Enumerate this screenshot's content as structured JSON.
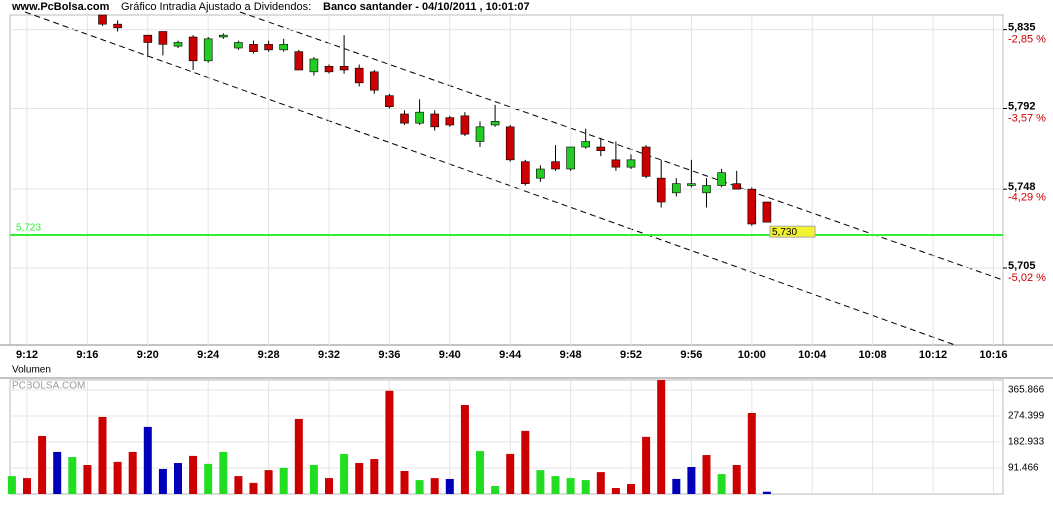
{
  "chart_data": [
    {
      "type": "candlestick",
      "source": "www.PcBolsa.com",
      "subtitle": "Gráfico Intradia Ajustado a Dividendos:",
      "title": "Banco santander - 04/10/2011 , 10:01:07",
      "categories": [
        null,
        "9:12",
        null,
        null,
        null,
        "9:16",
        null,
        null,
        null,
        "9:20",
        null,
        null,
        null,
        "9:24",
        null,
        null,
        null,
        "9:28",
        null,
        null,
        null,
        "9:32",
        null,
        null,
        null,
        "9:36",
        null,
        null,
        null,
        "9:40",
        null,
        null,
        null,
        "9:44",
        null,
        null,
        null,
        "9:48",
        null,
        null,
        null,
        "9:52",
        null,
        null,
        null,
        "9:56",
        null,
        null,
        null,
        "10:00",
        null,
        null,
        null,
        "10:04",
        null,
        null,
        null,
        "10:08",
        null,
        null,
        null,
        "10:12",
        null,
        null,
        null,
        "10:16"
      ],
      "open": [
        null,
        null,
        null,
        null,
        null,
        null,
        5.843,
        5.838,
        null,
        5.832,
        5.834,
        5.826,
        5.831,
        5.818,
        5.831,
        5.825,
        5.827,
        5.827,
        5.824,
        5.823,
        5.812,
        5.815,
        5.815,
        5.814,
        5.812,
        5.799,
        5.789,
        5.784,
        5.789,
        5.787,
        5.788,
        5.774,
        5.783,
        5.782,
        5.763,
        5.754,
        5.763,
        5.759,
        5.771,
        5.771,
        5.764,
        5.76,
        5.771,
        5.754,
        5.746,
        5.75,
        5.746,
        5.75,
        5.751,
        5.748,
        5.741,
        null,
        null,
        null,
        null,
        null,
        null,
        null,
        null,
        null,
        null,
        null,
        null,
        null,
        null,
        null
      ],
      "high": [
        null,
        null,
        null,
        null,
        null,
        null,
        5.843,
        5.84,
        null,
        5.832,
        5.834,
        5.829,
        5.832,
        5.831,
        5.833,
        5.829,
        5.829,
        5.829,
        5.83,
        5.824,
        5.82,
        5.816,
        5.832,
        5.816,
        5.813,
        5.8,
        5.791,
        5.797,
        5.791,
        5.788,
        5.79,
        5.785,
        5.794,
        5.783,
        5.764,
        5.761,
        5.772,
        5.771,
        5.781,
        5.776,
        5.774,
        5.767,
        5.772,
        5.764,
        5.754,
        5.764,
        5.754,
        5.759,
        5.758,
        5.749,
        5.741,
        null,
        null,
        null,
        null,
        null,
        null,
        null,
        null,
        null,
        null,
        null,
        null,
        null,
        null,
        null
      ],
      "low": [
        null,
        null,
        null,
        null,
        null,
        null,
        5.837,
        5.834,
        null,
        5.82,
        5.821,
        5.825,
        5.813,
        5.817,
        5.83,
        5.824,
        5.822,
        5.823,
        5.823,
        5.813,
        5.81,
        5.811,
        5.811,
        5.804,
        5.8,
        5.792,
        5.783,
        5.783,
        5.78,
        5.782,
        5.777,
        5.771,
        5.782,
        5.763,
        5.75,
        5.752,
        5.758,
        5.758,
        5.77,
        5.766,
        5.758,
        5.759,
        5.754,
        5.738,
        5.744,
        5.749,
        5.738,
        5.749,
        5.748,
        5.728,
        5.73,
        null,
        null,
        null,
        null,
        null,
        null,
        null,
        null,
        null,
        null,
        null,
        null,
        null,
        null,
        null
      ],
      "close": [
        null,
        null,
        null,
        null,
        null,
        null,
        5.838,
        5.836,
        null,
        5.828,
        5.827,
        5.828,
        5.818,
        5.83,
        5.832,
        5.828,
        5.823,
        5.824,
        5.827,
        5.813,
        5.819,
        5.812,
        5.813,
        5.806,
        5.802,
        5.793,
        5.784,
        5.79,
        5.782,
        5.783,
        5.778,
        5.782,
        5.785,
        5.764,
        5.751,
        5.759,
        5.759,
        5.771,
        5.774,
        5.769,
        5.76,
        5.764,
        5.755,
        5.741,
        5.751,
        5.751,
        5.75,
        5.757,
        5.748,
        5.729,
        5.73,
        null,
        null,
        null,
        null,
        null,
        null,
        null,
        null,
        null,
        null,
        null,
        null,
        null,
        null,
        null
      ],
      "up_color": "#22cc22",
      "down_color": "#cc0000",
      "ylim": [
        5.663,
        5.843
      ],
      "yticks": [
        {
          "value": 5.835,
          "label": "5,835"
        },
        {
          "value": 5.792,
          "label": "5,792"
        },
        {
          "value": 5.748,
          "label": "5,748"
        },
        {
          "value": 5.705,
          "label": "5,705"
        }
      ],
      "y2lim": [
        -5.71,
        -2.71
      ],
      "y2ticks": [
        {
          "value": -2.85,
          "label": "-2,85 %"
        },
        {
          "value": -3.57,
          "label": "-3,57 %"
        },
        {
          "value": -4.29,
          "label": "-4,29 %"
        },
        {
          "value": -5.02,
          "label": "-5,02 %"
        }
      ],
      "y2_color": "#cc0000",
      "grid": true,
      "annotations": [
        {
          "value": 5.723,
          "label": "5,723",
          "color": "#33ee33"
        },
        {
          "value": 5.73,
          "label": "5,730",
          "color": "#f2f230"
        }
      ]
    },
    {
      "type": "bar",
      "title": "Volumen",
      "watermark": "PCBOLSA.COM",
      "values": [
        63000,
        56000,
        204000,
        148000,
        130000,
        102000,
        271000,
        113000,
        148000,
        236000,
        88000,
        109000,
        134000,
        106000,
        148000,
        63000,
        39000,
        84000,
        92000,
        264000,
        102000,
        56000,
        141000,
        109000,
        123000,
        363000,
        81000,
        49000,
        56000,
        53000,
        313000,
        151000,
        28000,
        141000,
        222000,
        84000,
        63000,
        56000,
        49000,
        77000,
        21000,
        35000,
        201000,
        401000,
        53000,
        95000,
        137000,
        70000,
        102000,
        285000,
        8000,
        null,
        null,
        null,
        null,
        null,
        null,
        null,
        null,
        null,
        null,
        null,
        null,
        null,
        null,
        null
      ],
      "colors": [
        "#22dd22",
        "#cc0000",
        "#cc0000",
        "#0000bb",
        "#22dd22",
        "#cc0000",
        "#cc0000",
        "#cc0000",
        "#cc0000",
        "#0000bb",
        "#0000bb",
        "#0000bb",
        "#cc0000",
        "#22dd22",
        "#22dd22",
        "#cc0000",
        "#cc0000",
        "#cc0000",
        "#22dd22",
        "#cc0000",
        "#22dd22",
        "#cc0000",
        "#22dd22",
        "#cc0000",
        "#cc0000",
        "#cc0000",
        "#cc0000",
        "#22dd22",
        "#cc0000",
        "#0000bb",
        "#cc0000",
        "#22dd22",
        "#22dd22",
        "#cc0000",
        "#cc0000",
        "#22dd22",
        "#22dd22",
        "#22dd22",
        "#22dd22",
        "#cc0000",
        "#cc0000",
        "#cc0000",
        "#cc0000",
        "#cc0000",
        "#0000bb",
        "#0000bb",
        "#cc0000",
        "#22dd22",
        "#cc0000",
        "#cc0000",
        "#0000bb",
        null,
        null,
        null,
        null,
        null,
        null,
        null,
        null,
        null,
        null,
        null,
        null,
        null,
        null,
        null
      ],
      "ylim": [
        0,
        401000
      ],
      "yticks": [
        {
          "value": 91466,
          "label": "91.466"
        },
        {
          "value": 182933,
          "label": "182.933"
        },
        {
          "value": 274399,
          "label": "274.399"
        },
        {
          "value": 365866,
          "label": "365.866"
        }
      ],
      "grid": true
    }
  ]
}
